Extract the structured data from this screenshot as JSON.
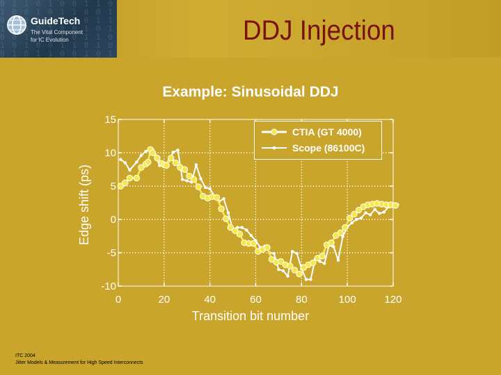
{
  "header": {
    "title": "DDJ Injection",
    "logo": {
      "name": "GuideTech",
      "tagline_1": "The Vital Component",
      "tagline_2": "for IC Evolution"
    }
  },
  "footer": {
    "line_1": "ITC 2004",
    "line_2": "Jitter Models & Measurement for High Speed Interconnects"
  },
  "colors": {
    "background": "#c9a52b",
    "title": "#7a1010",
    "ctia_series": "#f5e84a",
    "scope_series": "#ffffff",
    "grid": "#ffffff"
  },
  "chart_data": {
    "type": "line",
    "title": "Example: Sinusoidal DDJ",
    "xlabel": "Transition bit number",
    "ylabel": "Edge shift (ps)",
    "xlim": [
      0,
      120
    ],
    "ylim": [
      -10,
      15
    ],
    "xticks": [
      0,
      20,
      40,
      60,
      80,
      100,
      120
    ],
    "yticks": [
      15,
      10,
      5,
      0,
      -5,
      -10
    ],
    "grid": true,
    "legend_position": "top-right",
    "series": [
      {
        "name": "CTIA (GT 4000)",
        "marker": "circle",
        "color": "#f5e84a",
        "x": [
          1,
          3,
          5,
          8,
          10,
          12,
          13,
          14,
          15,
          17,
          19,
          20,
          21,
          23,
          25,
          27,
          29,
          31,
          33,
          35,
          37,
          39,
          41,
          43,
          45,
          47,
          49,
          51,
          53,
          55,
          57,
          59,
          61,
          63,
          65,
          67,
          69,
          71,
          73,
          75,
          77,
          79,
          81,
          83,
          85,
          87,
          89,
          91,
          93,
          95,
          97,
          99,
          101,
          103,
          105,
          107,
          109,
          111,
          113,
          115,
          117,
          119,
          121
        ],
        "y": [
          5.0,
          5.5,
          6.2,
          6.2,
          7.8,
          8.3,
          8.6,
          10.5,
          10.0,
          9.2,
          8.4,
          8.2,
          8.1,
          9.2,
          8.5,
          7.8,
          7.5,
          6.5,
          6.0,
          4.9,
          3.5,
          3.2,
          3.4,
          3.3,
          1.6,
          0.1,
          -1.2,
          -1.7,
          -2.2,
          -3.5,
          -3.6,
          -3.6,
          -4.8,
          -4.5,
          -4.2,
          -6.0,
          -6.4,
          -6.3,
          -6.8,
          -7.0,
          -7.6,
          -8.2,
          -7.2,
          -6.8,
          -6.5,
          -5.8,
          -5.5,
          -3.8,
          -3.5,
          -2.4,
          -2.0,
          -1.2,
          0.2,
          0.8,
          1.4,
          1.9,
          2.2,
          2.3,
          2.4,
          2.3,
          2.2,
          2.2,
          2.1
        ]
      },
      {
        "name": "Scope (86100C)",
        "marker": "dot",
        "color": "#ffffff",
        "x": [
          1,
          3,
          5,
          8,
          10,
          12,
          14,
          15,
          16,
          18,
          20,
          22,
          24,
          26,
          28,
          30,
          32,
          34,
          36,
          38,
          40,
          42,
          44,
          46,
          48,
          50,
          52,
          54,
          56,
          58,
          60,
          62,
          64,
          66,
          68,
          70,
          72,
          74,
          76,
          78,
          80,
          82,
          84,
          86,
          88,
          90,
          92,
          94,
          96,
          98,
          100,
          102,
          104,
          106,
          108,
          110,
          112,
          114,
          116,
          118,
          120,
          122
        ],
        "y": [
          9.0,
          8.5,
          7.4,
          8.6,
          9.6,
          10.2,
          10.6,
          10.5,
          9.8,
          8.1,
          8.3,
          8.7,
          10.1,
          10.4,
          6.0,
          5.8,
          5.6,
          8.2,
          6.1,
          4.8,
          4.6,
          3.5,
          2.7,
          3.1,
          1.0,
          -1.5,
          -1.2,
          -1.2,
          -1.6,
          -2.4,
          -3.2,
          -4.2,
          -4.0,
          -5.0,
          -5.1,
          -7.5,
          -7.7,
          -8.5,
          -4.8,
          -5.1,
          -7.4,
          -9.0,
          -9.0,
          -5.9,
          -6.3,
          -6.6,
          -3.9,
          -4.1,
          -6.1,
          -2.6,
          -1.1,
          -0.5,
          0.0,
          0.2,
          1.0,
          0.7,
          1.5,
          0.9,
          1.1,
          1.9,
          2.3,
          2.2
        ]
      }
    ]
  }
}
